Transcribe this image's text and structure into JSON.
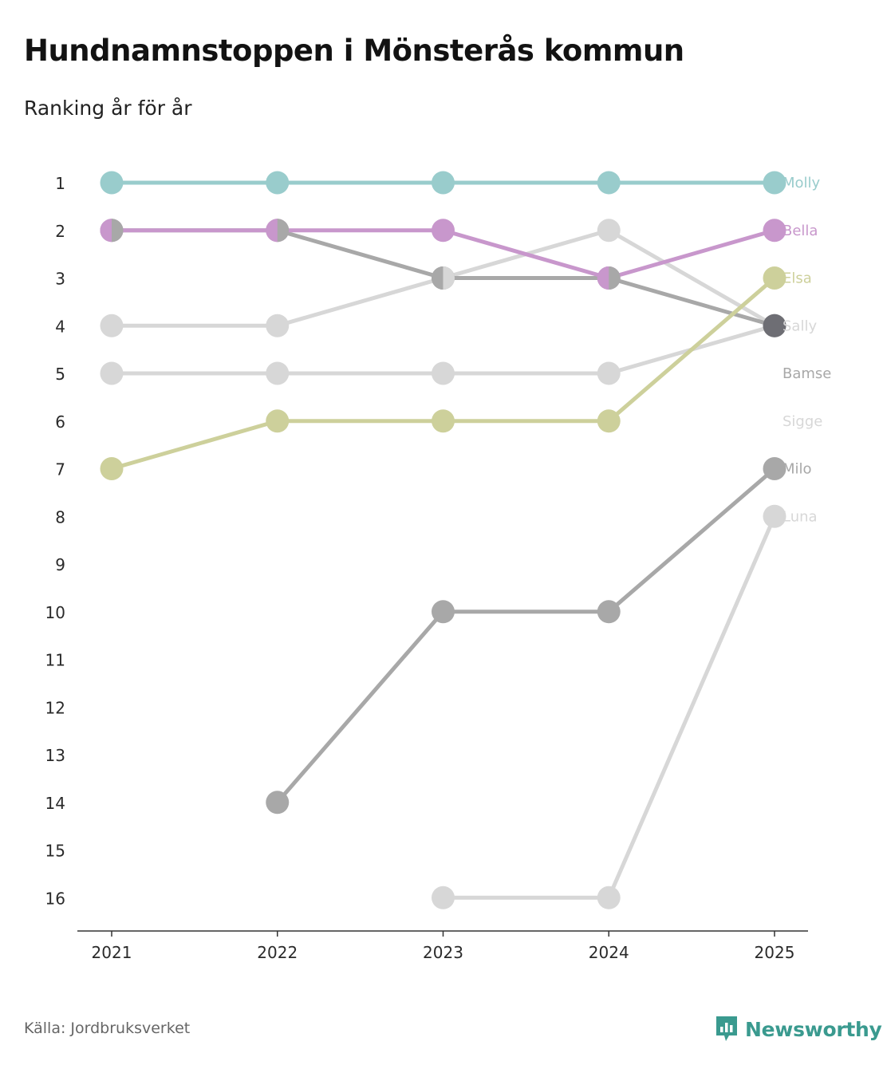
{
  "title": "Hundnamnstoppen i Mönsterås kommun",
  "subtitle": "Ranking år för år",
  "source": "Källa: Jordbruksverket",
  "brand": "Newsworthy",
  "colors": {
    "brand": "#3a9a8f",
    "axis": "#333333",
    "text": "#222222"
  },
  "chart_data": {
    "type": "line",
    "title": "Hundnamnstoppen i Mönsterås kommun",
    "subtitle": "Ranking år för år",
    "xlabel": "",
    "ylabel": "",
    "x": [
      "2021",
      "2022",
      "2023",
      "2024",
      "2025"
    ],
    "y_ticks": [
      "1",
      "2",
      "3",
      "4",
      "5",
      "6",
      "7",
      "8",
      "9",
      "10",
      "11",
      "12",
      "13",
      "14",
      "15",
      "16"
    ],
    "ylim": [
      1,
      16
    ],
    "y_reversed": true,
    "series": [
      {
        "name": "Luna",
        "color": "#d7d7d7",
        "values": [
          null,
          null,
          16,
          16,
          8
        ]
      },
      {
        "name": "Sigge",
        "color": "#d7d7d7",
        "values": [
          4,
          4,
          3,
          2,
          4
        ]
      },
      {
        "name": "Bamse",
        "color": "#d7d7d7",
        "values": [
          5,
          5,
          5,
          5,
          4
        ]
      },
      {
        "name": "Milo",
        "color": "#a8a8a8",
        "values": [
          null,
          14,
          10,
          10,
          7
        ]
      },
      {
        "name": "Sally",
        "color": "#a8a8a8",
        "values": [
          2,
          2,
          3,
          3,
          4
        ]
      },
      {
        "name": "Elsa",
        "color": "#cdd09b",
        "values": [
          7,
          6,
          6,
          6,
          3
        ]
      },
      {
        "name": "Bella",
        "color": "#c897cc",
        "values": [
          2,
          2,
          2,
          3,
          2
        ]
      },
      {
        "name": "Molly",
        "color": "#99cccc",
        "values": [
          1,
          1,
          1,
          1,
          1
        ]
      }
    ],
    "end_labels": [
      {
        "name": "Molly",
        "rank": 1,
        "color": "#99cccc"
      },
      {
        "name": "Bella",
        "rank": 2,
        "color": "#c897cc"
      },
      {
        "name": "Elsa",
        "rank": 3,
        "color": "#cdd09b"
      },
      {
        "name": "Sally",
        "rank": 4,
        "color": "#d7d7d7"
      },
      {
        "name": "Bamse",
        "rank": 5,
        "color": "#a8a8a8"
      },
      {
        "name": "Sigge",
        "rank": 6,
        "color": "#d7d7d7"
      },
      {
        "name": "Milo",
        "rank": 7,
        "color": "#a8a8a8"
      },
      {
        "name": "Luna",
        "rank": 8,
        "color": "#d7d7d7"
      }
    ],
    "shared_points": [
      {
        "year": "2021",
        "rank": 2,
        "colors": [
          "#c897cc",
          "#a8a8a8"
        ]
      },
      {
        "year": "2022",
        "rank": 2,
        "colors": [
          "#c897cc",
          "#a8a8a8"
        ]
      },
      {
        "year": "2023",
        "rank": 3,
        "colors": [
          "#a8a8a8",
          "#d7d7d7"
        ]
      },
      {
        "year": "2024",
        "rank": 3,
        "colors": [
          "#c897cc",
          "#a8a8a8"
        ]
      },
      {
        "year": "2025",
        "rank": 4,
        "colors": [
          "#6e6e74"
        ]
      }
    ]
  }
}
